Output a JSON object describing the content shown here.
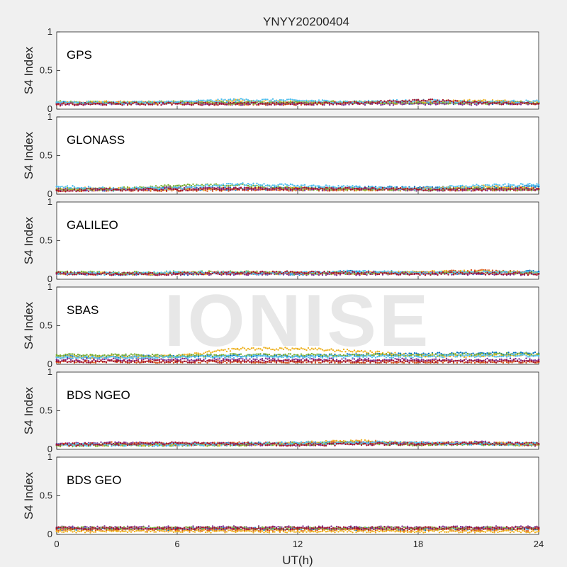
{
  "figure": {
    "title": "YNYY20200404",
    "xlabel": "UT(h)",
    "watermark": "IONISE"
  },
  "chart_data": {
    "type": "scatter",
    "title": "YNYY20200404",
    "xlabel": "UT(h)",
    "ylabel": "S4 Index",
    "xlim": [
      0,
      24
    ],
    "ylim": [
      0,
      1
    ],
    "xticks": [
      0,
      6,
      12,
      18,
      24
    ],
    "yticks": [
      0,
      0.5,
      1
    ],
    "ytick_labels": [
      "0",
      "0.5",
      "1"
    ],
    "grid": false,
    "colors": [
      "#0072BD",
      "#D95319",
      "#EDB120",
      "#7E2F8E",
      "#77AC30",
      "#4DBEEE",
      "#A2142F"
    ],
    "panels": [
      {
        "name": "GPS",
        "series": [
          {
            "color": "#0072BD",
            "x": [
              0,
              3,
              6,
              9,
              12,
              15,
              18,
              21,
              24
            ],
            "y": [
              0.08,
              0.08,
              0.09,
              0.08,
              0.08,
              0.09,
              0.08,
              0.08,
              0.08
            ]
          },
          {
            "color": "#D95319",
            "x": [
              0,
              3,
              6,
              9,
              12,
              15,
              18,
              21,
              24
            ],
            "y": [
              0.07,
              0.08,
              0.08,
              0.07,
              0.07,
              0.08,
              0.08,
              0.09,
              0.08
            ]
          },
          {
            "color": "#EDB120",
            "x": [
              0,
              3,
              6,
              9,
              12,
              15,
              18,
              21,
              24
            ],
            "y": [
              0.08,
              0.09,
              0.08,
              0.11,
              0.09,
              0.08,
              0.09,
              0.11,
              0.09
            ]
          },
          {
            "color": "#7E2F8E",
            "x": [
              0,
              3,
              6,
              9,
              12,
              15,
              18,
              21,
              24
            ],
            "y": [
              0.07,
              0.07,
              0.08,
              0.07,
              0.07,
              0.07,
              0.07,
              0.07,
              0.08
            ]
          },
          {
            "color": "#77AC30",
            "x": [
              0,
              3,
              6,
              9,
              12,
              15,
              18,
              21,
              24
            ],
            "y": [
              0.09,
              0.08,
              0.09,
              0.08,
              0.09,
              0.09,
              0.09,
              0.08,
              0.08
            ]
          },
          {
            "color": "#4DBEEE",
            "x": [
              0,
              3,
              6,
              9,
              12,
              15,
              18,
              21,
              24
            ],
            "y": [
              0.09,
              0.08,
              0.09,
              0.12,
              0.11,
              0.09,
              0.11,
              0.09,
              0.1
            ]
          },
          {
            "color": "#A2142F",
            "x": [
              0,
              3,
              6,
              9,
              12,
              15,
              18,
              21,
              24
            ],
            "y": [
              0.06,
              0.07,
              0.07,
              0.07,
              0.07,
              0.08,
              0.12,
              0.08,
              0.07
            ]
          }
        ]
      },
      {
        "name": "GLONASS",
        "series": [
          {
            "color": "#0072BD",
            "x": [
              0,
              3,
              6,
              9,
              12,
              15,
              18,
              21,
              24
            ],
            "y": [
              0.06,
              0.06,
              0.07,
              0.07,
              0.08,
              0.09,
              0.08,
              0.08,
              0.1
            ]
          },
          {
            "color": "#D95319",
            "x": [
              0,
              3,
              6,
              9,
              12,
              15,
              18,
              21,
              24
            ],
            "y": [
              0.05,
              0.06,
              0.05,
              0.06,
              0.06,
              0.06,
              0.07,
              0.06,
              0.06
            ]
          },
          {
            "color": "#EDB120",
            "x": [
              0,
              3,
              6,
              9,
              12,
              15,
              18,
              21,
              24
            ],
            "y": [
              0.07,
              0.07,
              0.06,
              0.07,
              0.08,
              0.06,
              0.06,
              0.1,
              0.07
            ]
          },
          {
            "color": "#7E2F8E",
            "x": [
              0,
              3,
              6,
              9,
              12,
              15,
              18,
              21,
              24
            ],
            "y": [
              0.06,
              0.06,
              0.08,
              0.07,
              0.06,
              0.07,
              0.06,
              0.06,
              0.06
            ]
          },
          {
            "color": "#77AC30",
            "x": [
              0,
              3,
              6,
              9,
              12,
              15,
              18,
              21,
              24
            ],
            "y": [
              0.06,
              0.07,
              0.11,
              0.12,
              0.07,
              0.07,
              0.06,
              0.07,
              0.06
            ]
          },
          {
            "color": "#4DBEEE",
            "x": [
              0,
              3,
              6,
              9,
              12,
              15,
              18,
              21,
              24
            ],
            "y": [
              0.1,
              0.07,
              0.08,
              0.13,
              0.11,
              0.09,
              0.07,
              0.11,
              0.12
            ]
          },
          {
            "color": "#A2142F",
            "x": [
              0,
              3,
              6,
              9,
              12,
              15,
              18,
              21,
              24
            ],
            "y": [
              0.05,
              0.06,
              0.06,
              0.07,
              0.07,
              0.07,
              0.06,
              0.06,
              0.07
            ]
          }
        ]
      },
      {
        "name": "GALILEO",
        "series": [
          {
            "color": "#0072BD",
            "x": [
              0,
              3,
              6,
              9,
              12,
              15,
              18,
              21,
              24
            ],
            "y": [
              0.08,
              0.07,
              0.07,
              0.08,
              0.07,
              0.1,
              0.08,
              0.08,
              0.1
            ]
          },
          {
            "color": "#D95319",
            "x": [
              0,
              3,
              6,
              9,
              12,
              15,
              18,
              21,
              24
            ],
            "y": [
              0.07,
              0.07,
              0.08,
              0.08,
              0.08,
              0.08,
              0.08,
              0.11,
              0.08
            ]
          },
          {
            "color": "#EDB120",
            "x": [
              0,
              3,
              6,
              9,
              12,
              15,
              18,
              21,
              24
            ],
            "y": [
              0.08,
              0.07,
              0.08,
              0.08,
              0.08,
              0.08,
              0.09,
              0.1,
              0.08
            ]
          },
          {
            "color": "#7E2F8E",
            "x": [
              0,
              3,
              6,
              9,
              12,
              15,
              18,
              21,
              24
            ],
            "y": [
              0.07,
              0.07,
              0.07,
              0.07,
              0.07,
              0.07,
              0.08,
              0.07,
              0.07
            ]
          },
          {
            "color": "#77AC30",
            "x": [
              0,
              3,
              6,
              9,
              12,
              15,
              18,
              21,
              24
            ],
            "y": [
              0.09,
              0.08,
              0.09,
              0.09,
              0.08,
              0.08,
              0.08,
              0.09,
              0.08
            ]
          },
          {
            "color": "#4DBEEE",
            "x": [
              0,
              3,
              6,
              9,
              12,
              15,
              18,
              21,
              24
            ],
            "y": [
              0.08,
              0.07,
              0.09,
              0.08,
              0.08,
              0.1,
              0.08,
              0.09,
              0.08
            ]
          },
          {
            "color": "#A2142F",
            "x": [
              0,
              3,
              6,
              9,
              12,
              15,
              18,
              21,
              24
            ],
            "y": [
              0.08,
              0.07,
              0.07,
              0.08,
              0.09,
              0.08,
              0.07,
              0.08,
              0.07
            ]
          }
        ]
      },
      {
        "name": "SBAS",
        "series": [
          {
            "color": "#0072BD",
            "x": [
              0,
              3,
              6,
              9,
              12,
              15,
              18,
              21,
              24
            ],
            "y": [
              0.1,
              0.1,
              0.1,
              0.11,
              0.11,
              0.12,
              0.13,
              0.14,
              0.14
            ]
          },
          {
            "color": "#D95319",
            "x": [
              0,
              3,
              6,
              9,
              12,
              15,
              18,
              21,
              24
            ],
            "y": [
              0.03,
              0.03,
              0.03,
              0.03,
              0.03,
              0.03,
              0.03,
              0.03,
              0.03
            ]
          },
          {
            "color": "#EDB120",
            "x": [
              0,
              3,
              6,
              9,
              12,
              15,
              18,
              21,
              24
            ],
            "y": [
              0.1,
              0.1,
              0.1,
              0.2,
              0.2,
              0.17,
              0.11,
              0.11,
              0.12
            ]
          },
          {
            "color": "#7E2F8E",
            "x": [
              0,
              3,
              6,
              9,
              12,
              15,
              18,
              21,
              24
            ],
            "y": [
              0.06,
              0.06,
              0.06,
              0.06,
              0.06,
              0.06,
              0.06,
              0.06,
              0.06
            ]
          },
          {
            "color": "#77AC30",
            "x": [
              0,
              3,
              6,
              9,
              12,
              15,
              18,
              21,
              24
            ],
            "y": [
              0.12,
              0.12,
              0.11,
              0.12,
              0.12,
              0.12,
              0.12,
              0.13,
              0.13
            ]
          },
          {
            "color": "#4DBEEE",
            "x": [
              0,
              3,
              6,
              9,
              12,
              15,
              18,
              21,
              24
            ],
            "y": [
              0.09,
              0.09,
              0.09,
              0.1,
              0.1,
              0.1,
              0.1,
              0.11,
              0.11
            ]
          },
          {
            "color": "#A2142F",
            "x": [
              0,
              3,
              6,
              9,
              12,
              15,
              18,
              21,
              24
            ],
            "y": [
              0.04,
              0.04,
              0.04,
              0.04,
              0.04,
              0.04,
              0.04,
              0.04,
              0.04
            ]
          }
        ]
      },
      {
        "name": "BDS NGEO",
        "series": [
          {
            "color": "#0072BD",
            "x": [
              0,
              3,
              6,
              9,
              12,
              15,
              18,
              21,
              24
            ],
            "y": [
              0.06,
              0.06,
              0.06,
              0.07,
              0.08,
              0.09,
              0.07,
              0.07,
              0.07
            ]
          },
          {
            "color": "#D95319",
            "x": [
              0,
              3,
              6,
              9,
              12,
              15,
              18,
              21,
              24
            ],
            "y": [
              0.06,
              0.08,
              0.06,
              0.08,
              0.07,
              0.1,
              0.08,
              0.08,
              0.06
            ]
          },
          {
            "color": "#EDB120",
            "x": [
              0,
              3,
              6,
              9,
              12,
              15,
              18,
              21,
              24
            ],
            "y": [
              0.05,
              0.06,
              0.06,
              0.06,
              0.08,
              0.11,
              0.07,
              0.08,
              0.06
            ]
          },
          {
            "color": "#7E2F8E",
            "x": [
              0,
              3,
              6,
              9,
              12,
              15,
              18,
              21,
              24
            ],
            "y": [
              0.07,
              0.08,
              0.07,
              0.07,
              0.06,
              0.08,
              0.07,
              0.09,
              0.06
            ]
          },
          {
            "color": "#77AC30",
            "x": [
              0,
              3,
              6,
              9,
              12,
              15,
              18,
              21,
              24
            ],
            "y": [
              0.05,
              0.06,
              0.06,
              0.06,
              0.07,
              0.08,
              0.06,
              0.07,
              0.06
            ]
          },
          {
            "color": "#4DBEEE",
            "x": [
              0,
              3,
              6,
              9,
              12,
              15,
              18,
              21,
              24
            ],
            "y": [
              0.06,
              0.06,
              0.06,
              0.07,
              0.08,
              0.09,
              0.08,
              0.07,
              0.07
            ]
          },
          {
            "color": "#A2142F",
            "x": [
              0,
              3,
              6,
              9,
              12,
              15,
              18,
              21,
              24
            ],
            "y": [
              0.06,
              0.07,
              0.08,
              0.07,
              0.06,
              0.07,
              0.07,
              0.08,
              0.07
            ]
          }
        ]
      },
      {
        "name": "BDS GEO",
        "series": [
          {
            "color": "#0072BD",
            "x": [
              0,
              3,
              6,
              9,
              12,
              15,
              18,
              21,
              24
            ],
            "y": [
              0.07,
              0.07,
              0.07,
              0.07,
              0.07,
              0.07,
              0.07,
              0.07,
              0.07
            ]
          },
          {
            "color": "#D95319",
            "x": [
              0,
              3,
              6,
              9,
              12,
              15,
              18,
              21,
              24
            ],
            "y": [
              0.06,
              0.06,
              0.06,
              0.06,
              0.06,
              0.06,
              0.06,
              0.06,
              0.06
            ]
          },
          {
            "color": "#EDB120",
            "x": [
              0,
              3,
              6,
              9,
              12,
              15,
              18,
              21,
              24
            ],
            "y": [
              0.04,
              0.04,
              0.04,
              0.04,
              0.04,
              0.04,
              0.04,
              0.04,
              0.04
            ]
          },
          {
            "color": "#7E2F8E",
            "x": [
              0,
              3,
              6,
              9,
              12,
              15,
              18,
              21,
              24
            ],
            "y": [
              0.09,
              0.09,
              0.09,
              0.09,
              0.09,
              0.09,
              0.09,
              0.09,
              0.09
            ]
          },
          {
            "color": "#77AC30",
            "x": [
              0,
              3,
              6,
              9,
              12,
              15,
              18,
              21,
              24
            ],
            "y": [
              0.08,
              0.08,
              0.08,
              0.08,
              0.08,
              0.08,
              0.08,
              0.08,
              0.08
            ]
          },
          {
            "color": "#A2142F",
            "x": [
              0,
              3,
              6,
              9,
              12,
              15,
              18,
              21,
              24
            ],
            "y": [
              0.08,
              0.08,
              0.08,
              0.08,
              0.08,
              0.08,
              0.08,
              0.08,
              0.08
            ]
          }
        ]
      }
    ]
  }
}
